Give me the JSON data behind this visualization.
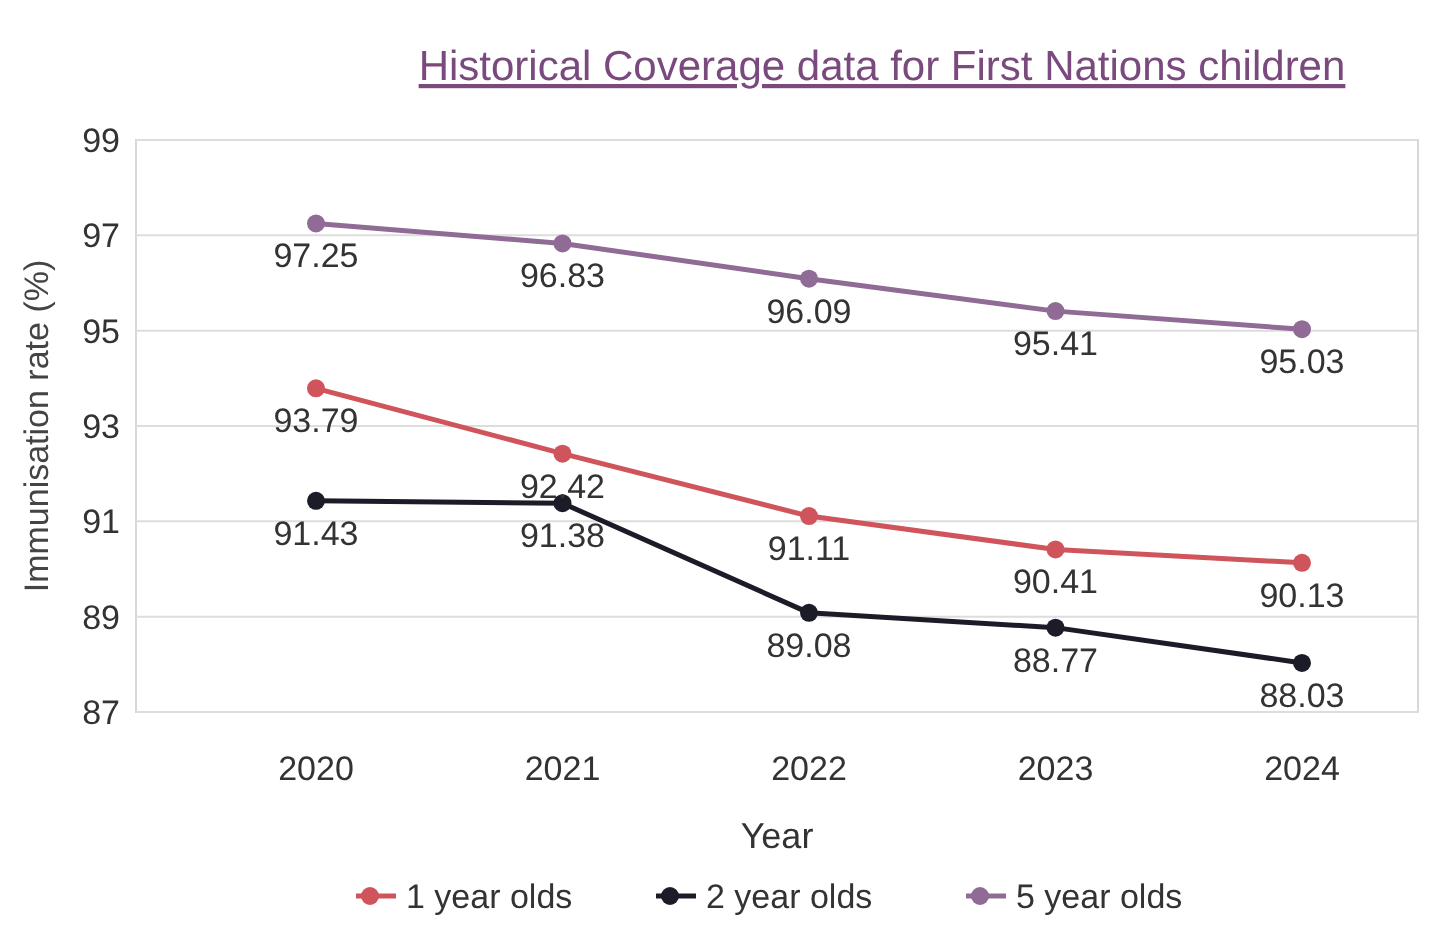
{
  "chart_data": {
    "type": "line",
    "title": "Historical Coverage data for First Nations children",
    "xlabel": "Year",
    "ylabel": "Immunisation rate (%)",
    "categories": [
      "2020",
      "2021",
      "2022",
      "2023",
      "2024"
    ],
    "series": [
      {
        "name": "1 year olds",
        "color": "#d0545c",
        "values": [
          93.79,
          92.42,
          91.11,
          90.41,
          90.13
        ]
      },
      {
        "name": "2 year olds",
        "color": "#1c1c28",
        "values": [
          91.43,
          91.38,
          89.08,
          88.77,
          88.03
        ]
      },
      {
        "name": "5 year olds",
        "color": "#8f6b96",
        "values": [
          97.25,
          96.83,
          96.09,
          95.41,
          95.03
        ]
      }
    ],
    "ylim": [
      87,
      99
    ],
    "yticks": [
      87,
      89,
      91,
      93,
      95,
      97,
      99
    ],
    "grid": "y",
    "legend": "bottom",
    "marker": "circle",
    "line_style": "solid",
    "data_labels": true
  }
}
